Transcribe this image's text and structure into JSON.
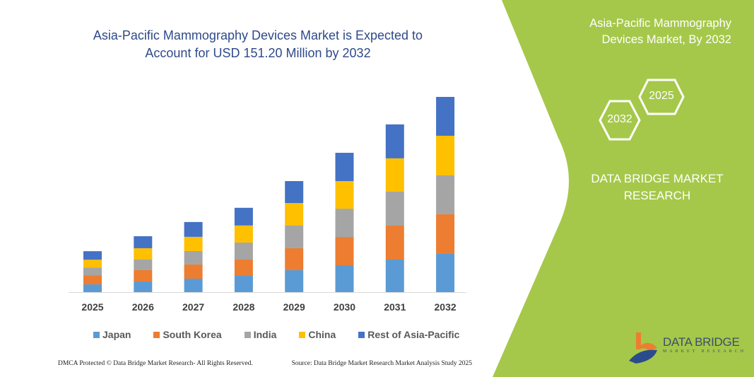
{
  "chart_data": {
    "type": "bar",
    "stacked": true,
    "title": "Asia-Pacific Mammography Devices Market is Expected to Account for USD 151.20 Million by 2032",
    "categories": [
      "2025",
      "2026",
      "2027",
      "2028",
      "2029",
      "2030",
      "2031",
      "2032"
    ],
    "series": [
      {
        "name": "Japan",
        "color": "#5b9bd5",
        "values": [
          6.0,
          8.2,
          10.4,
          12.6,
          17.0,
          20.8,
          25.2,
          29.6
        ]
      },
      {
        "name": "South Korea",
        "color": "#ed7d31",
        "values": [
          7.1,
          8.8,
          11.0,
          12.6,
          17.0,
          21.9,
          26.3,
          30.7
        ]
      },
      {
        "name": "India",
        "color": "#a5a5a5",
        "values": [
          6.0,
          8.2,
          10.4,
          13.2,
          17.5,
          21.9,
          26.3,
          30.1
        ]
      },
      {
        "name": "China",
        "color": "#ffc000",
        "values": [
          6.0,
          8.8,
          11.0,
          13.2,
          17.5,
          21.4,
          25.8,
          30.7
        ]
      },
      {
        "name": "Rest of Asia-Pacific",
        "color": "#4472c4",
        "values": [
          6.6,
          9.3,
          11.5,
          13.7,
          17.0,
          21.9,
          26.3,
          30.1
        ]
      }
    ],
    "xlabel": "",
    "ylabel": "",
    "ylim": [
      0,
      160
    ],
    "grid": false,
    "legend": "bottom"
  },
  "title_line1": "Asia-Pacific Mammography Devices Market is Expected to",
  "title_line2": "Account for USD 151.20 Million by 2032",
  "footer": {
    "left": "DMCA Protected © Data Bridge Market Research-  All Rights Reserved.",
    "right": "Source: Data Bridge Market Research  Market Analysis Study 2025"
  },
  "panel": {
    "title_line1": "Asia-Pacific Mammography",
    "title_line2": "Devices Market, By 2032",
    "hex_left": "2032",
    "hex_right": "2025",
    "brand_line1": "DATA BRIDGE MARKET",
    "brand_line2": "RESEARCH",
    "color": "#a5c84a"
  },
  "logo": {
    "name": "DATA BRIDGE",
    "sub": "MARKET RESEARCH"
  }
}
